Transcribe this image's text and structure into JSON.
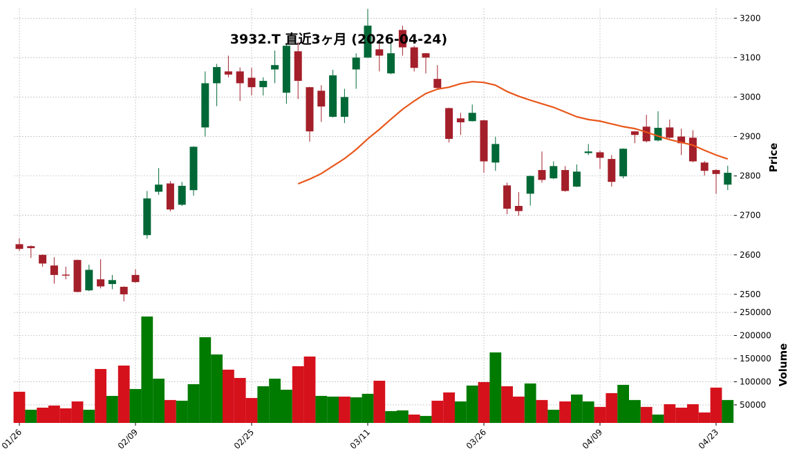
{
  "chart_data": {
    "type": "candlestick",
    "title": "3932.T  直近3ヶ月  (2026-04-24)",
    "x": [
      "01/26",
      null,
      null,
      null,
      null,
      null,
      null,
      null,
      null,
      null,
      "02/09",
      null,
      null,
      null,
      null,
      null,
      null,
      null,
      null,
      null,
      "02/25",
      null,
      null,
      null,
      null,
      null,
      null,
      null,
      null,
      null,
      "03/11",
      null,
      null,
      null,
      null,
      null,
      null,
      null,
      null,
      null,
      "03/26",
      null,
      null,
      null,
      null,
      null,
      null,
      null,
      null,
      null,
      "04/09",
      null,
      null,
      null,
      null,
      null,
      null,
      null,
      null,
      null,
      "04/23",
      null
    ],
    "open": [
      2627,
      2622,
      2600,
      2573,
      2550,
      2587,
      2510,
      2538,
      2526,
      2519,
      2549,
      2650,
      2760,
      2781,
      2727,
      2764,
      2923,
      3035,
      3065,
      3065,
      3049,
      3025,
      3070,
      3011,
      3116,
      3025,
      3016,
      2950,
      2950,
      3070,
      3100,
      3121,
      3060,
      3170,
      3126,
      3111,
      3046,
      2972,
      2946,
      2939,
      2941,
      2834,
      2776,
      2724,
      2755,
      2815,
      2794,
      2815,
      2773,
      2858,
      2860,
      2843,
      2799,
      2913,
      2925,
      2890,
      2923,
      2900,
      2897,
      2834,
      2815,
      2778
    ],
    "high": [
      2642,
      2624,
      2601,
      2594,
      2570,
      2588,
      2575,
      2589,
      2549,
      2520,
      2563,
      2762,
      2820,
      2787,
      2785,
      2875,
      3065,
      3084,
      3105,
      3075,
      3074,
      3050,
      3118,
      3135,
      3140,
      3026,
      3030,
      3069,
      3021,
      3111,
      3223,
      3144,
      3140,
      3181,
      3130,
      3112,
      3081,
      2973,
      2960,
      2981,
      2942,
      2899,
      2783,
      2759,
      2801,
      2862,
      2837,
      2825,
      2829,
      2881,
      2864,
      2853,
      2870,
      2914,
      2955,
      2964,
      2943,
      2920,
      2916,
      2838,
      2817,
      2826
    ],
    "low": [
      2610,
      2592,
      2570,
      2527,
      2538,
      2505,
      2508,
      2515,
      2513,
      2482,
      2529,
      2641,
      2752,
      2710,
      2724,
      2750,
      2900,
      2977,
      3050,
      2990,
      3004,
      3004,
      3035,
      2983,
      2995,
      2887,
      2937,
      2948,
      2934,
      3021,
      3100,
      3065,
      3058,
      3105,
      3065,
      3060,
      3018,
      2885,
      2904,
      2938,
      2808,
      2813,
      2703,
      2699,
      2725,
      2783,
      2792,
      2760,
      2772,
      2853,
      2818,
      2773,
      2794,
      2883,
      2885,
      2888,
      2895,
      2853,
      2835,
      2801,
      2755,
      2764
    ],
    "close": [
      2615,
      2617,
      2578,
      2549,
      2548,
      2506,
      2562,
      2520,
      2536,
      2500,
      2531,
      2743,
      2778,
      2715,
      2775,
      2874,
      3035,
      3076,
      3057,
      3035,
      3025,
      3041,
      3081,
      3130,
      3041,
      2913,
      2976,
      3055,
      3000,
      3100,
      3181,
      3105,
      3111,
      3126,
      3074,
      3100,
      3023,
      2894,
      2936,
      2960,
      2837,
      2881,
      2717,
      2711,
      2800,
      2790,
      2825,
      2762,
      2811,
      2862,
      2846,
      2785,
      2869,
      2904,
      2888,
      2922,
      2897,
      2883,
      2837,
      2813,
      2805,
      2808
    ],
    "up_color": "#006837",
    "down_color": "#a31f2a",
    "ma": {
      "color": "#e8561a",
      "values": [
        null,
        null,
        null,
        null,
        null,
        null,
        null,
        null,
        null,
        null,
        null,
        null,
        null,
        null,
        null,
        null,
        null,
        null,
        null,
        null,
        null,
        null,
        null,
        null,
        2780,
        2792,
        2806,
        2825,
        2844,
        2867,
        2894,
        2918,
        2944,
        2969,
        2990,
        3009,
        3020,
        3025,
        3034,
        3039,
        3037,
        3030,
        3014,
        3002,
        2992,
        2983,
        2974,
        2962,
        2950,
        2943,
        2939,
        2932,
        2925,
        2920,
        2911,
        2901,
        2892,
        2885,
        2878,
        2865,
        2853,
        2843
      ]
    },
    "ylim": [
      2463,
      3225
    ],
    "yticks": [
      2500,
      2600,
      2700,
      2800,
      2900,
      3000,
      3100,
      3200
    ],
    "ylabel": "Price",
    "volume": {
      "values": [
        78400,
        39500,
        44000,
        48500,
        42500,
        57500,
        39500,
        127600,
        69400,
        135000,
        84300,
        241000,
        106700,
        60500,
        59000,
        94800,
        196300,
        159000,
        126100,
        108200,
        64900,
        90300,
        106700,
        82800,
        133600,
        154500,
        69400,
        67900,
        67900,
        66400,
        73900,
        102200,
        36600,
        38100,
        29100,
        26100,
        59000,
        76900,
        57500,
        91800,
        99300,
        163400,
        90300,
        67900,
        96300,
        60500,
        39500,
        57500,
        72400,
        57500,
        45600,
        75400,
        93300,
        60500,
        45600,
        29100,
        51500,
        44000,
        51500,
        33600,
        87300,
        60500
      ],
      "up_color": "#007b00",
      "down_color": "#d5111c",
      "ylim": [
        11000,
        257500
      ],
      "yticks": [
        50000,
        100000,
        150000,
        200000,
        250000
      ],
      "ylabel": "Volume"
    },
    "grid": true
  }
}
